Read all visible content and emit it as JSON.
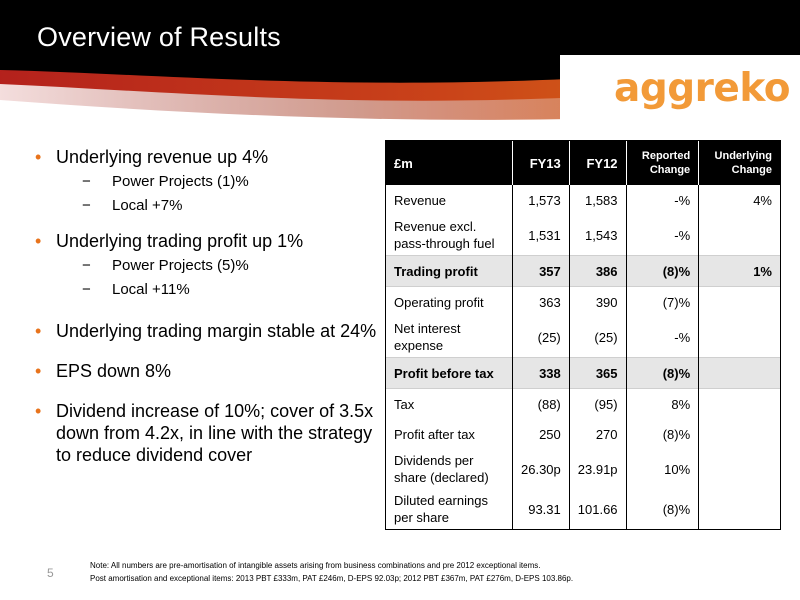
{
  "header": {
    "title": "Overview of Results",
    "logo_text": "aggreko",
    "logo_color": "#F29A38"
  },
  "bullets": [
    {
      "text": "Underlying revenue up 4%",
      "subs": [
        "Power Projects (1)%",
        "Local +7%"
      ]
    },
    {
      "text": "Underlying trading profit up 1%",
      "subs": [
        "Power Projects (5)%",
        "Local +11%"
      ]
    },
    {
      "text": "Underlying trading margin stable at 24%",
      "subs": []
    },
    {
      "text": "EPS down 8%",
      "subs": []
    },
    {
      "text": "Dividend increase of 10%; cover of 3.5x down from 4.2x, in line with the strategy to reduce dividend cover",
      "subs": []
    }
  ],
  "table": {
    "headers": [
      "£m",
      "FY13",
      "FY12",
      "Reported Change",
      "Underlying Change"
    ],
    "rows": [
      {
        "cells": [
          "Revenue",
          "1,573",
          "1,583",
          "-%",
          "4%"
        ],
        "highlight": false,
        "tall": false
      },
      {
        "cells": [
          "Revenue excl. pass-through fuel",
          "1,531",
          "1,543",
          "-%",
          ""
        ],
        "highlight": false,
        "tall": true
      },
      {
        "cells": [
          "Trading profit",
          "357",
          "386",
          "(8)%",
          "1%"
        ],
        "highlight": true,
        "tall": false
      },
      {
        "cells": [
          "Operating profit",
          "363",
          "390",
          "(7)%",
          ""
        ],
        "highlight": false,
        "tall": false
      },
      {
        "cells": [
          "Net interest expense",
          "(25)",
          "(25)",
          "-%",
          ""
        ],
        "highlight": false,
        "tall": true
      },
      {
        "cells": [
          "Profit before tax",
          "338",
          "365",
          "(8)%",
          ""
        ],
        "highlight": true,
        "tall": false
      },
      {
        "cells": [
          "Tax",
          "(88)",
          "(95)",
          "8%",
          ""
        ],
        "highlight": false,
        "tall": false
      },
      {
        "cells": [
          "Profit after tax",
          "250",
          "270",
          "(8)%",
          ""
        ],
        "highlight": false,
        "tall": false
      },
      {
        "cells": [
          "Dividends per share (declared)",
          "26.30p",
          "23.91p",
          "10%",
          ""
        ],
        "highlight": false,
        "tall": true
      },
      {
        "cells": [
          "Diluted earnings per share",
          "93.31",
          "101.66",
          "(8)%",
          ""
        ],
        "highlight": false,
        "tall": true
      }
    ]
  },
  "footer": {
    "page_number": "5",
    "note_line1": "Note: All numbers are pre-amortisation of intangible assets arising from business combinations and pre 2012 exceptional items.",
    "note_line2": "Post amortisation and exceptional items: 2013  PBT £333m, PAT £246m,  D-EPS 92.03p; 2012 PBT £367m, PAT £276m, D-EPS 103.86p."
  }
}
